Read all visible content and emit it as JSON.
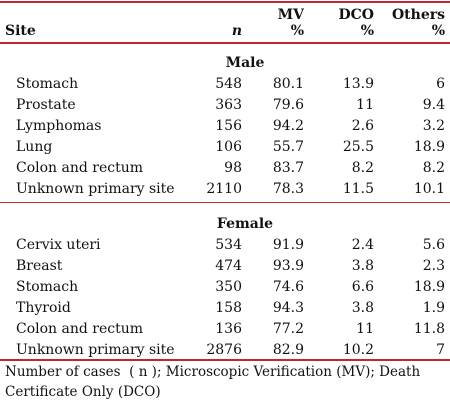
{
  "header": {
    "site": "Site",
    "n": "n",
    "mv_top": "MV",
    "mv_bottom": "%",
    "dco_top": "DCO",
    "dco_bottom": "%",
    "others_top": "Others",
    "others_bottom": "%"
  },
  "sections": {
    "male": {
      "title": "Male",
      "rows": [
        {
          "site": "Stomach",
          "n": "548",
          "mv": "80.1",
          "dco": "13.9",
          "others": "6"
        },
        {
          "site": "Prostate",
          "n": "363",
          "mv": "79.6",
          "dco": "11",
          "others": "9.4"
        },
        {
          "site": "Lymphomas",
          "n": "156",
          "mv": "94.2",
          "dco": "2.6",
          "others": "3.2"
        },
        {
          "site": "Lung",
          "n": "106",
          "mv": "55.7",
          "dco": "25.5",
          "others": "18.9"
        },
        {
          "site": "Colon and rectum",
          "n": "98",
          "mv": "83.7",
          "dco": "8.2",
          "others": "8.2"
        },
        {
          "site": "Unknown primary site",
          "n": "2110",
          "mv": "78.3",
          "dco": "11.5",
          "others": "10.1"
        }
      ]
    },
    "female": {
      "title": "Female",
      "rows": [
        {
          "site": "Cervix uteri",
          "n": "534",
          "mv": "91.9",
          "dco": "2.4",
          "others": "5.6"
        },
        {
          "site": "Breast",
          "n": "474",
          "mv": "93.9",
          "dco": "3.8",
          "others": "2.3"
        },
        {
          "site": "Stomach",
          "n": "350",
          "mv": "74.6",
          "dco": "6.6",
          "others": "18.9"
        },
        {
          "site": "Thyroid",
          "n": "158",
          "mv": "94.3",
          "dco": "3.8",
          "others": "1.9"
        },
        {
          "site": "Colon and rectum",
          "n": "136",
          "mv": "77.2",
          "dco": "11",
          "others": "11.8"
        },
        {
          "site": "Unknown primary site",
          "n": "2876",
          "mv": "82.9",
          "dco": "10.2",
          "others": "7"
        }
      ]
    }
  },
  "footnote": "Number of cases  ( n ); Microscopic Verification (MV); Death Certificate Only (DCO)",
  "colors": {
    "rule": "#c0282d",
    "text": "#111111"
  }
}
